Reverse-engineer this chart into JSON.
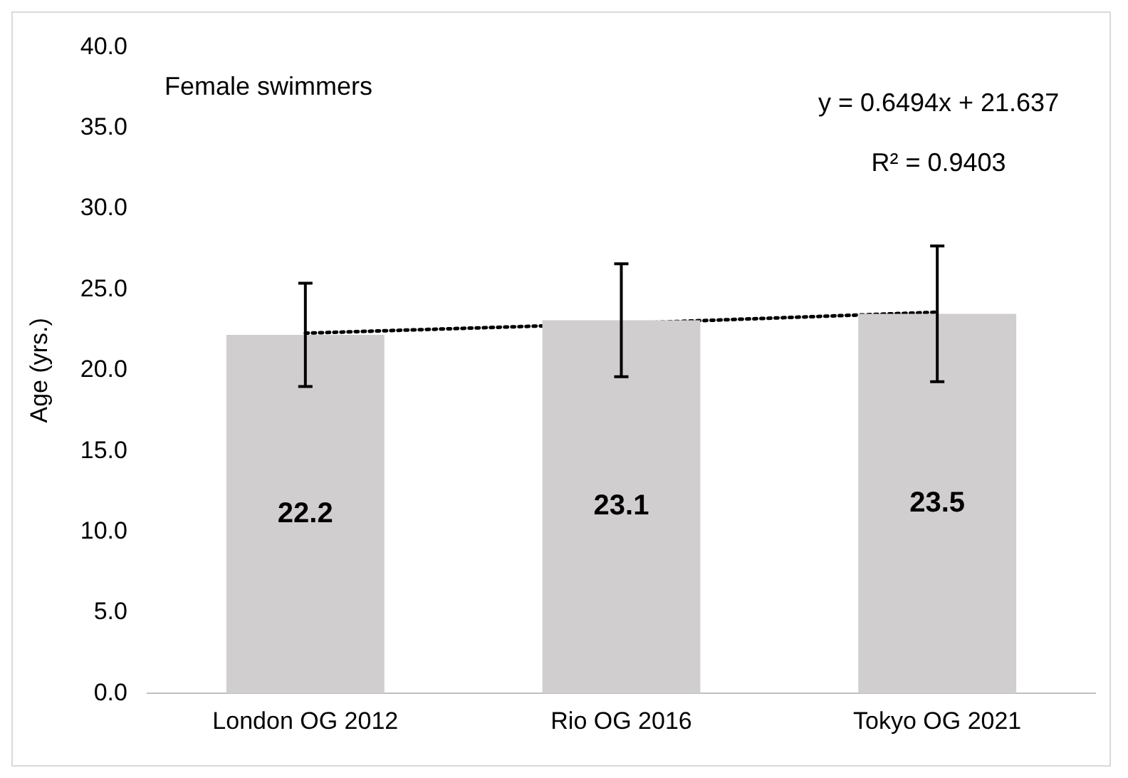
{
  "chart_data": {
    "type": "bar",
    "ylabel": "Age (yrs.)",
    "categories": [
      "London OG 2012",
      "Rio OG 2016",
      "Tokyo OG 2021"
    ],
    "series": [
      {
        "color": "#d0cece",
        "values": [
          22.2,
          23.1,
          23.5
        ],
        "value_labels": [
          "22.2",
          "23.1",
          "23.5"
        ],
        "errors": [
          [
            19.0,
            25.4
          ],
          [
            19.6,
            26.6
          ],
          [
            19.3,
            27.7
          ]
        ]
      },
      {
        "type": "line",
        "color": "#000000",
        "values": [
          22.3,
          22.9,
          23.6
        ],
        "line_style": "dotted",
        "marker": "none"
      }
    ],
    "ylim": [
      0,
      40
    ],
    "yticks": [
      {
        "value": 0,
        "label": "0.0"
      },
      {
        "value": 5,
        "label": "5.0"
      },
      {
        "value": 10,
        "label": "10.0"
      },
      {
        "value": 15,
        "label": "15.0"
      },
      {
        "value": 20,
        "label": "20.0"
      },
      {
        "value": 25,
        "label": "25.0"
      },
      {
        "value": 30,
        "label": "30.0"
      },
      {
        "value": 35,
        "label": "35.0"
      },
      {
        "value": 40,
        "label": "40.0"
      }
    ],
    "grid": false,
    "legend": false,
    "annotations": [
      "Female swimmers",
      "y = 0.6494x + 21.637",
      "R² = 0.9403"
    ]
  }
}
